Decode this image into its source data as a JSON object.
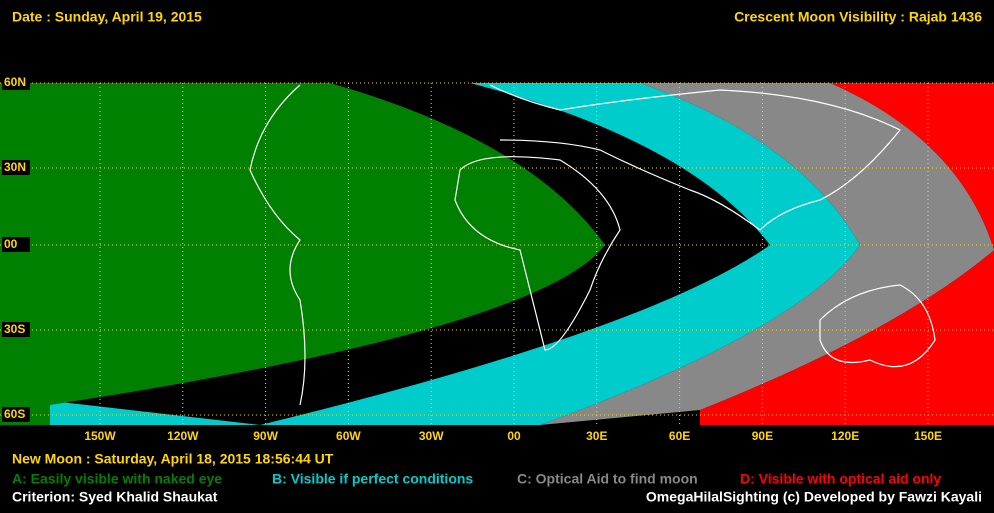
{
  "header": {
    "date": "Date : Sunday, April 19, 2015",
    "title": "Crescent Moon Visibility : Rajab  1436"
  },
  "map": {
    "lat_labels": [
      "60N",
      "30N",
      "00",
      "30S",
      "60S"
    ],
    "lon_labels": [
      "150W",
      "120W",
      "90W",
      "60W",
      "30W",
      "00",
      "30E",
      "60E",
      "90E",
      "120E",
      "150E"
    ]
  },
  "footer": {
    "new_moon": "New Moon : Saturday, April 18, 2015  18:56:44  UT",
    "criterion": "Criterion: Syed Khalid Shaukat",
    "credit": "OmegaHilalSighting  (c)  Developed by Fawzi Kayali"
  },
  "legend": [
    {
      "label": "A: Easily visible with naked eye",
      "color": "#008000"
    },
    {
      "label": "B: Visible if perfect conditions",
      "color": "#00cccc"
    },
    {
      "label": "C: Optical Aid to find moon",
      "color": "#888888"
    },
    {
      "label": "D: Visible with optical aid only",
      "color": "#ff0000"
    }
  ]
}
